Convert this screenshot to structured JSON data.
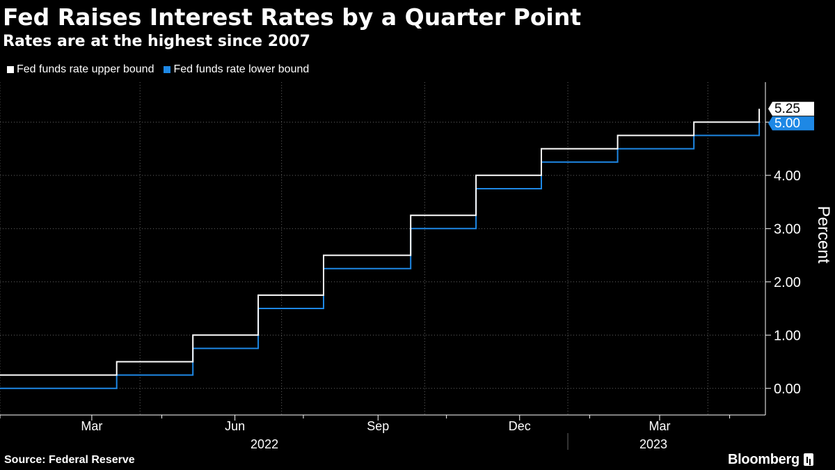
{
  "colors": {
    "background": "#000000",
    "text": "#ffffff",
    "grid": "#666666",
    "axis": "#ffffff",
    "upper_series": "#ffffff",
    "lower_series": "#1e88e5",
    "upper_label_text": "#000000",
    "lower_label_text": "#ffffff"
  },
  "chart_data": {
    "type": "line",
    "step": true,
    "title": "Fed Raises Interest Rates by a Quarter Point",
    "subtitle": "Rates are at the highest since 2007",
    "ylabel": "Percent",
    "xlabel": "",
    "ylim": [
      -0.5,
      5.75
    ],
    "yticks": [
      0,
      1,
      2,
      3,
      4,
      5
    ],
    "ytick_labels": [
      "0.00",
      "1.00",
      "2.00",
      "3.00",
      "4.00",
      "5.00"
    ],
    "grid": true,
    "legend_position": "top-left",
    "x_domain": [
      "2022-01-01",
      "2023-05-08"
    ],
    "x_ticks": [
      {
        "date": "2022-03-01",
        "label": "Mar"
      },
      {
        "date": "2022-06-01",
        "label": "Jun"
      },
      {
        "date": "2022-09-01",
        "label": "Sep"
      },
      {
        "date": "2022-12-01",
        "label": "Dec"
      },
      {
        "date": "2023-03-01",
        "label": "Mar"
      }
    ],
    "x_minor_ticks": [
      "2022-01-01",
      "2022-04-15",
      "2022-07-15",
      "2022-10-15",
      "2023-01-15",
      "2023-04-15"
    ],
    "grid_dates": [
      "2022-01-01",
      "2022-04-01",
      "2022-07-01",
      "2022-10-01",
      "2023-01-01",
      "2023-04-01"
    ],
    "year_labels": [
      {
        "label": "2022",
        "center": "2022-06-20"
      },
      {
        "label": "2023",
        "center": "2023-02-25"
      }
    ],
    "year_separator": "2023-01-01",
    "series": [
      {
        "name": "Fed funds rate upper bound",
        "color": "#ffffff",
        "end_label": "5.25",
        "points": [
          [
            "2022-01-01",
            0.25
          ],
          [
            "2022-03-17",
            0.5
          ],
          [
            "2022-05-05",
            1.0
          ],
          [
            "2022-06-16",
            1.75
          ],
          [
            "2022-07-28",
            2.5
          ],
          [
            "2022-09-22",
            3.25
          ],
          [
            "2022-11-03",
            4.0
          ],
          [
            "2022-12-15",
            4.5
          ],
          [
            "2023-02-02",
            4.75
          ],
          [
            "2023-03-23",
            5.0
          ],
          [
            "2023-05-04",
            5.25
          ]
        ]
      },
      {
        "name": "Fed funds rate lower bound",
        "color": "#1e88e5",
        "end_label": "5.00",
        "points": [
          [
            "2022-01-01",
            0.0
          ],
          [
            "2022-03-17",
            0.25
          ],
          [
            "2022-05-05",
            0.75
          ],
          [
            "2022-06-16",
            1.5
          ],
          [
            "2022-07-28",
            2.25
          ],
          [
            "2022-09-22",
            3.0
          ],
          [
            "2022-11-03",
            3.75
          ],
          [
            "2022-12-15",
            4.25
          ],
          [
            "2023-02-02",
            4.5
          ],
          [
            "2023-03-23",
            4.75
          ],
          [
            "2023-05-04",
            5.0
          ]
        ]
      }
    ]
  },
  "source": "Source: Federal Reserve",
  "brand": "Bloomberg",
  "brand_icon": "bloomberg-chart-icon"
}
